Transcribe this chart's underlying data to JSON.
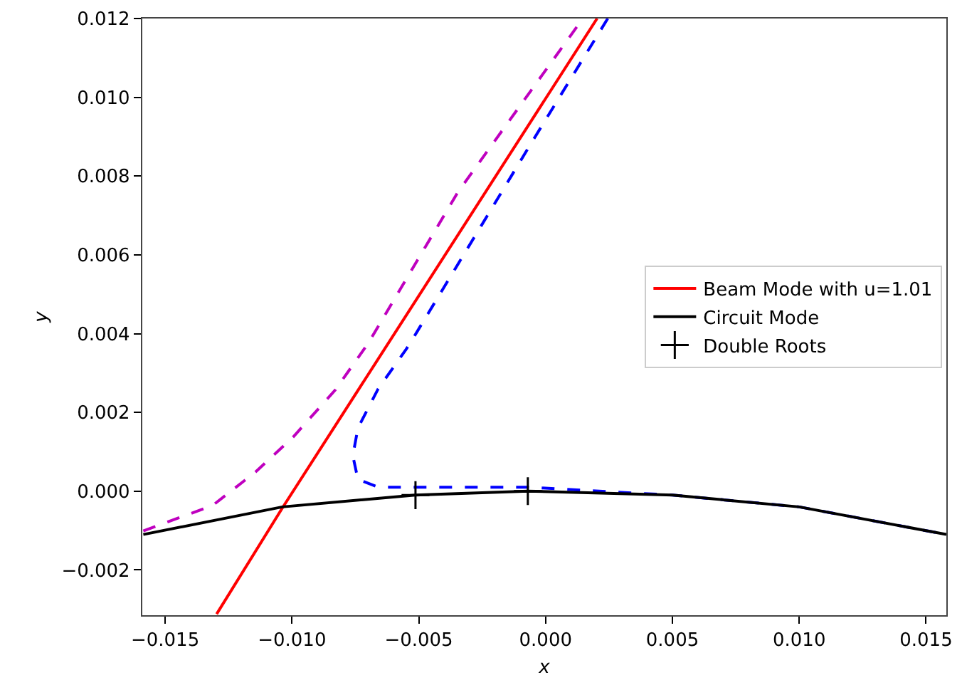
{
  "chart_data": {
    "type": "line",
    "xlabel": "x",
    "ylabel": "y",
    "xlim": [
      -0.0159,
      0.0158
    ],
    "ylim": [
      -0.00315,
      0.012
    ],
    "xticks": [
      {
        "value": -0.015,
        "label": "−0.015"
      },
      {
        "value": -0.01,
        "label": "−0.010"
      },
      {
        "value": -0.005,
        "label": "−0.005"
      },
      {
        "value": 0,
        "label": "0.000"
      },
      {
        "value": 0.005,
        "label": "0.005"
      },
      {
        "value": 0.01,
        "label": "0.010"
      },
      {
        "value": 0.015,
        "label": "0.015"
      }
    ],
    "yticks": [
      {
        "value": -0.002,
        "label": "−0.002"
      },
      {
        "value": 0,
        "label": "0.000"
      },
      {
        "value": 0.002,
        "label": "0.002"
      },
      {
        "value": 0.004,
        "label": "0.004"
      },
      {
        "value": 0.006,
        "label": "0.006"
      },
      {
        "value": 0.008,
        "label": "0.008"
      },
      {
        "value": 0.01,
        "label": "0.010"
      },
      {
        "value": 0.012,
        "label": "0.012"
      }
    ],
    "grid": false,
    "legend": "right",
    "series": [
      {
        "color": "#bf00bf",
        "line_style": "dashed",
        "x": [
          -0.01586,
          -0.01312,
          -0.01145,
          -0.00996,
          -0.00829,
          -0.00699,
          -0.00346,
          0.00147
        ],
        "values": [
          -0.00101,
          -0.00036,
          0.00048,
          0.00137,
          0.00257,
          0.00376,
          0.00759,
          0.012
        ]
      },
      {
        "color": "#0000ff",
        "line_style": "dashed",
        "x": [
          0.00245,
          -0.0006,
          -0.0053,
          -0.0055,
          -0.0066,
          -0.0074,
          -0.0076,
          -0.0074,
          -0.0066,
          -0.0051,
          -0.0007,
          0.005,
          0.01,
          0.0158
        ],
        "values": [
          0.012,
          0.0088,
          0.0038,
          0.0036,
          0.0026,
          0.0016,
          0.0009,
          0.0003,
          0.0001,
          0.0001,
          0.0001,
          -0.0001,
          -0.0004,
          -0.0011
        ]
      },
      {
        "name": "Beam Mode with u=1.01",
        "color": "#ff0000",
        "line_style": "solid",
        "x": [
          -0.01297,
          -0.01038,
          0.00203
        ],
        "values": [
          -0.00312,
          -0.00043,
          0.012
        ]
      },
      {
        "name": "Circuit Mode",
        "color": "#000000",
        "line_style": "solid",
        "x": [
          -0.01586,
          -0.01038,
          -0.00513,
          -0.0007,
          0.005,
          0.01,
          0.0158
        ],
        "values": [
          -0.0011,
          -0.0004,
          -0.0001,
          0,
          -0.0001,
          -0.0004,
          -0.0011
        ]
      },
      {
        "name": "Double Roots",
        "type": "scatter",
        "color": "#000000",
        "marker": "cross",
        "x": [
          -0.00513,
          -0.0007
        ],
        "values": [
          -0.0001,
          0
        ]
      }
    ]
  }
}
